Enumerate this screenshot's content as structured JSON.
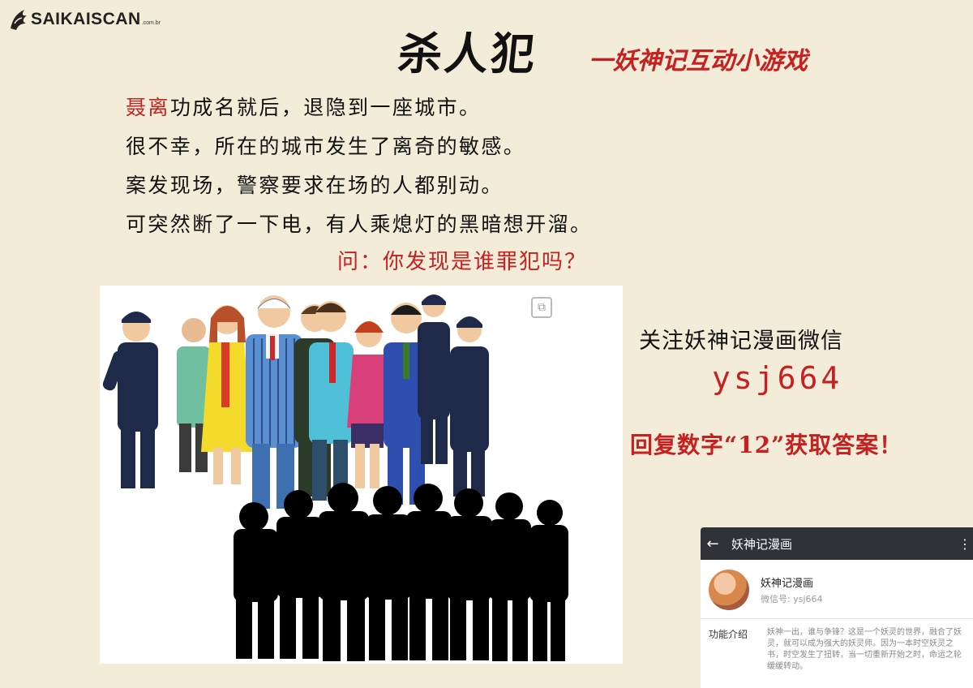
{
  "logo": {
    "brand": "SAIKAISCAN",
    "tld": ".com.br"
  },
  "header": {
    "title": "杀人犯",
    "subtitle": "一妖神记互动小游戏"
  },
  "story": {
    "line1_name": "聂离",
    "line1_rest": "功成名就后，退隐到一座城市。",
    "line2": "很不幸，所在的城市发生了离奇的敏感。",
    "line3": "案发现场，警察要求在场的人都别动。",
    "line4": "可突然断了一下电，有人乘熄灯的黑暗想开溜。",
    "question": "问：你发现是谁罪犯吗？"
  },
  "promo": {
    "follow": "关注妖神记漫画微信",
    "wechat_id": "ysj664",
    "reply": "回复数字“12”获取答案！"
  },
  "phone": {
    "back_icon": "back-arrow-icon",
    "title": "妖神记漫画",
    "menu_icon": "more-vertical-icon",
    "profile_name": "妖神记漫画",
    "profile_id": "微信号: ysj664",
    "intro_label": "功能介绍",
    "intro_text": "妖神一出，谁与争锋？这是一个妖灵的世界，融合了妖灵，就可以成为强大的妖灵师。因为一本时空妖灵之书，时空发生了扭转，当一切重新开始之时，命运之轮缓缓转动。"
  },
  "colors": {
    "background": "#f3ecd9",
    "accent_red": "#c62020"
  }
}
